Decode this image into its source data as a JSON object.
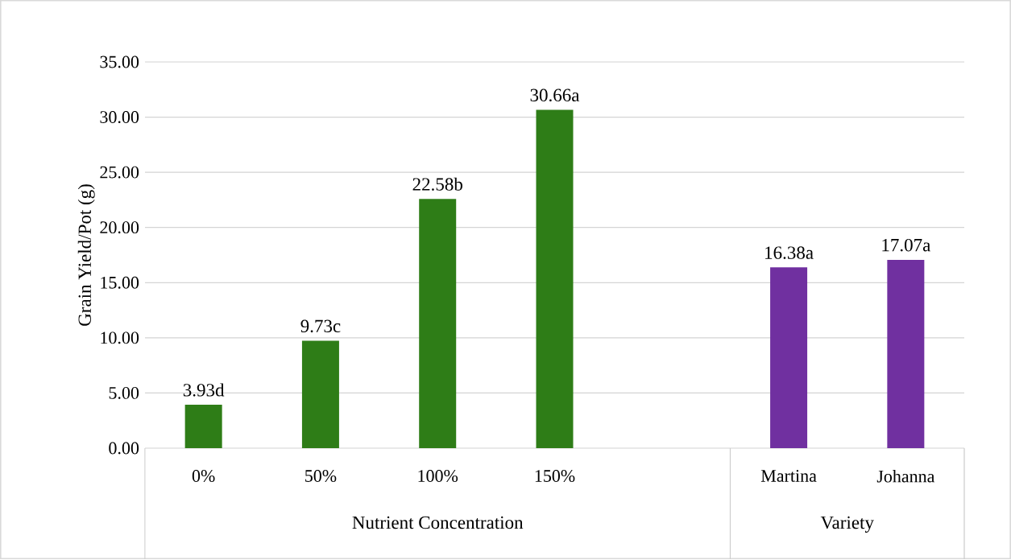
{
  "chart_data": {
    "type": "bar",
    "ylabel": "Grain Yield/Pot (g)",
    "categories": [
      "0%",
      "50%",
      "100%",
      "150%",
      null,
      "Martina",
      "Johanna"
    ],
    "values": [
      3.93,
      9.73,
      22.58,
      30.66,
      null,
      16.38,
      17.07
    ],
    "value_labels": [
      "3.93d",
      "9.73c",
      "22.58b",
      "30.66a",
      null,
      "16.38a",
      "17.07a"
    ],
    "colors": [
      "#2e7d17",
      "#2e7d17",
      "#2e7d17",
      "#2e7d17",
      null,
      "#7030a0",
      "#7030a0"
    ],
    "annotations": [
      "Nutrient Concentration",
      "Variety"
    ],
    "ylim": [
      0,
      35
    ],
    "yticks": [
      {
        "value": 0,
        "label": "0.00"
      },
      {
        "value": 5,
        "label": "5.00"
      },
      {
        "value": 10,
        "label": "10.00"
      },
      {
        "value": 15,
        "label": "15.00"
      },
      {
        "value": 20,
        "label": "20.00"
      },
      {
        "value": 25,
        "label": "25.00"
      },
      {
        "value": 30,
        "label": "30.00"
      },
      {
        "value": 35,
        "label": "35.00"
      }
    ],
    "grid": "y"
  }
}
